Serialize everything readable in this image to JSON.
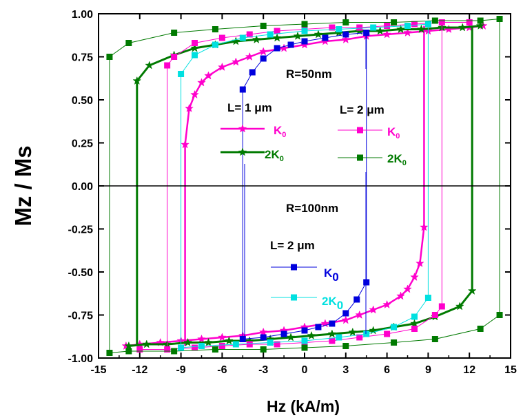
{
  "chart_data": {
    "type": "line",
    "xlabel": "Hz (kA/m)",
    "ylabel": "Mz / Ms",
    "xlim": [
      -15,
      15
    ],
    "ylim": [
      -1.0,
      1.0
    ],
    "x_ticks": [
      "-15",
      "-12",
      "-9",
      "-6",
      "-3",
      "0",
      "3",
      "6",
      "9",
      "12",
      "15"
    ],
    "y_ticks": [
      "1.00",
      "0.75",
      "0.50",
      "0.25",
      "0.00",
      "-0.25",
      "-0.50",
      "-0.75",
      "-1.00"
    ],
    "grid": false,
    "annotations": {
      "r50": "R=50nm",
      "r100": "R=100nm",
      "l1": "L= 1 μm",
      "l2_top": "L= 2 μm",
      "l2_bottom": "L= 2 μm"
    },
    "legend": [
      {
        "label": "K",
        "sub": "0",
        "series": 0
      },
      {
        "label": "2K",
        "sub": "0",
        "series": 1
      },
      {
        "label": "K",
        "sub": "0",
        "series": 2
      },
      {
        "label": "2K",
        "sub": "0",
        "series": 3
      },
      {
        "label": "K",
        "sub": "0",
        "series": 4
      },
      {
        "label": "2K",
        "sub": "0",
        "series": 5
      }
    ],
    "series": [
      {
        "group": "R=50nm, L=1 μm, K0",
        "color": "#ff00cc",
        "marker": "star",
        "width": 2.5,
        "upper": [
          [
            -8.7,
            0.24
          ],
          [
            -8.4,
            0.45
          ],
          [
            -8.0,
            0.53
          ],
          [
            -7.5,
            0.6
          ],
          [
            -7.0,
            0.64
          ],
          [
            -6.0,
            0.69
          ],
          [
            -5.0,
            0.72
          ],
          [
            -4.0,
            0.75
          ],
          [
            -3.0,
            0.78
          ],
          [
            -1.5,
            0.8
          ],
          [
            0,
            0.82
          ],
          [
            1.5,
            0.84
          ],
          [
            3.0,
            0.85
          ],
          [
            4.5,
            0.87
          ],
          [
            6.0,
            0.88
          ],
          [
            7.5,
            0.89
          ],
          [
            9.0,
            0.9
          ],
          [
            10.5,
            0.91
          ],
          [
            12.0,
            0.92
          ],
          [
            13.0,
            0.93
          ]
        ],
        "lower": [
          [
            -13.0,
            -0.93
          ],
          [
            -12.0,
            -0.92
          ],
          [
            -10.5,
            -0.91
          ],
          [
            -9.0,
            -0.9
          ],
          [
            -7.5,
            -0.89
          ],
          [
            -6.0,
            -0.88
          ],
          [
            -4.5,
            -0.87
          ],
          [
            -3.0,
            -0.85
          ],
          [
            -1.5,
            -0.84
          ],
          [
            0,
            -0.82
          ],
          [
            1.5,
            -0.8
          ],
          [
            3.0,
            -0.78
          ],
          [
            4.0,
            -0.75
          ],
          [
            5.0,
            -0.72
          ],
          [
            6.0,
            -0.69
          ],
          [
            7.0,
            -0.64
          ],
          [
            7.5,
            -0.6
          ],
          [
            8.0,
            -0.53
          ],
          [
            8.4,
            -0.45
          ],
          [
            8.7,
            -0.24
          ]
        ],
        "switch_fields": [
          -8.7,
          8.7
        ]
      },
      {
        "group": "R=50nm, L=1 μm, 2K0",
        "color": "#007a00",
        "marker": "star",
        "width": 3,
        "upper": [
          [
            -12.2,
            0.61
          ],
          [
            -11.3,
            0.7
          ],
          [
            -9.5,
            0.76
          ],
          [
            -8.0,
            0.8
          ],
          [
            -6.5,
            0.82
          ],
          [
            -5.0,
            0.84
          ],
          [
            -3.5,
            0.85
          ],
          [
            -2.0,
            0.86
          ],
          [
            -0.5,
            0.87
          ],
          [
            1.0,
            0.88
          ],
          [
            2.5,
            0.89
          ],
          [
            4.0,
            0.9
          ],
          [
            5.5,
            0.9
          ],
          [
            7.0,
            0.91
          ],
          [
            8.5,
            0.91
          ],
          [
            10.0,
            0.92
          ],
          [
            11.5,
            0.92
          ],
          [
            12.8,
            0.93
          ]
        ],
        "lower": [
          [
            -12.8,
            -0.93
          ],
          [
            -11.5,
            -0.92
          ],
          [
            -10.0,
            -0.92
          ],
          [
            -8.5,
            -0.91
          ],
          [
            -7.0,
            -0.91
          ],
          [
            -5.5,
            -0.9
          ],
          [
            -4.0,
            -0.9
          ],
          [
            -2.5,
            -0.89
          ],
          [
            -1.0,
            -0.88
          ],
          [
            0.5,
            -0.87
          ],
          [
            2.0,
            -0.86
          ],
          [
            3.5,
            -0.85
          ],
          [
            5.0,
            -0.84
          ],
          [
            6.5,
            -0.82
          ],
          [
            8.0,
            -0.8
          ],
          [
            9.5,
            -0.76
          ],
          [
            11.3,
            -0.7
          ],
          [
            12.2,
            -0.61
          ]
        ],
        "switch_fields": [
          -12.2,
          12.2
        ]
      },
      {
        "group": "R=50nm, L=2 μm, K0",
        "color": "#ff00cc",
        "marker": "square",
        "width": 1,
        "upper": [
          [
            -10.0,
            0.7
          ],
          [
            -9.5,
            0.75
          ],
          [
            -8.0,
            0.83
          ],
          [
            -6.0,
            0.86
          ],
          [
            -4.0,
            0.88
          ],
          [
            -2.0,
            0.9
          ],
          [
            0,
            0.91
          ],
          [
            2.0,
            0.92
          ],
          [
            4.0,
            0.92
          ],
          [
            6.0,
            0.93
          ],
          [
            8.0,
            0.94
          ],
          [
            10.0,
            0.95
          ],
          [
            12.0,
            0.95
          ]
        ],
        "lower": [
          [
            -12.0,
            -0.95
          ],
          [
            -10.0,
            -0.95
          ],
          [
            -8.0,
            -0.94
          ],
          [
            -6.0,
            -0.93
          ],
          [
            -4.0,
            -0.92
          ],
          [
            -2.0,
            -0.92
          ],
          [
            0,
            -0.91
          ],
          [
            2.0,
            -0.9
          ],
          [
            4.0,
            -0.88
          ],
          [
            6.0,
            -0.86
          ],
          [
            8.0,
            -0.83
          ],
          [
            9.5,
            -0.75
          ],
          [
            10.0,
            -0.7
          ]
        ],
        "switch_fields": [
          -10.0,
          10.0
        ]
      },
      {
        "group": "R=50nm, L=2 μm, 2K0",
        "color": "#007a00",
        "marker": "square",
        "width": 1,
        "upper": [
          [
            -14.2,
            0.75
          ],
          [
            -12.8,
            0.83
          ],
          [
            -9.5,
            0.89
          ],
          [
            -6.5,
            0.91
          ],
          [
            -3.0,
            0.93
          ],
          [
            0,
            0.94
          ],
          [
            3.0,
            0.95
          ],
          [
            6.5,
            0.95
          ],
          [
            9.5,
            0.96
          ],
          [
            12.8,
            0.96
          ],
          [
            14.2,
            0.97
          ]
        ],
        "lower": [
          [
            -14.2,
            -0.97
          ],
          [
            -12.8,
            -0.96
          ],
          [
            -9.5,
            -0.96
          ],
          [
            -6.5,
            -0.95
          ],
          [
            -3.0,
            -0.95
          ],
          [
            0,
            -0.94
          ],
          [
            3.0,
            -0.93
          ],
          [
            6.5,
            -0.91
          ],
          [
            9.5,
            -0.89
          ],
          [
            12.8,
            -0.83
          ],
          [
            14.2,
            -0.75
          ]
        ],
        "switch_fields": [
          -14.2,
          14.2
        ]
      },
      {
        "group": "R=100nm, L=2 μm, K0",
        "color": "#0000dd",
        "marker": "square",
        "width": 1,
        "upper": [
          [
            -4.5,
            0.56
          ],
          [
            -3.8,
            0.66
          ],
          [
            -3.0,
            0.74
          ],
          [
            -2.0,
            0.8
          ],
          [
            -1.0,
            0.82
          ],
          [
            0,
            0.84
          ],
          [
            1.5,
            0.86
          ],
          [
            3.0,
            0.88
          ],
          [
            4.5,
            0.89
          ]
        ],
        "lower": [
          [
            -4.5,
            -0.89
          ],
          [
            -3.0,
            -0.88
          ],
          [
            -1.5,
            -0.86
          ],
          [
            0,
            -0.84
          ],
          [
            1.0,
            -0.82
          ],
          [
            2.0,
            -0.8
          ],
          [
            3.0,
            -0.74
          ],
          [
            3.8,
            -0.66
          ],
          [
            4.5,
            -0.56
          ]
        ],
        "switch_fields": [
          -4.5,
          4.5
        ]
      },
      {
        "group": "R=100nm, L=2 μm, 2K0",
        "color": "#00e0e0",
        "marker": "square",
        "width": 1,
        "upper": [
          [
            -9.0,
            0.65
          ],
          [
            -8.0,
            0.76
          ],
          [
            -6.5,
            0.82
          ],
          [
            -4.5,
            0.86
          ],
          [
            -2.5,
            0.88
          ],
          [
            0,
            0.9
          ],
          [
            2.5,
            0.91
          ],
          [
            5.0,
            0.92
          ],
          [
            7.5,
            0.93
          ],
          [
            9.0,
            0.94
          ]
        ],
        "lower": [
          [
            -9.0,
            -0.94
          ],
          [
            -7.5,
            -0.93
          ],
          [
            -5.0,
            -0.92
          ],
          [
            -2.5,
            -0.91
          ],
          [
            0,
            -0.9
          ],
          [
            2.5,
            -0.88
          ],
          [
            4.5,
            -0.86
          ],
          [
            6.5,
            -0.82
          ],
          [
            8.0,
            -0.76
          ],
          [
            9.0,
            -0.65
          ]
        ],
        "switch_fields": [
          -9.0,
          9.0
        ]
      }
    ]
  }
}
